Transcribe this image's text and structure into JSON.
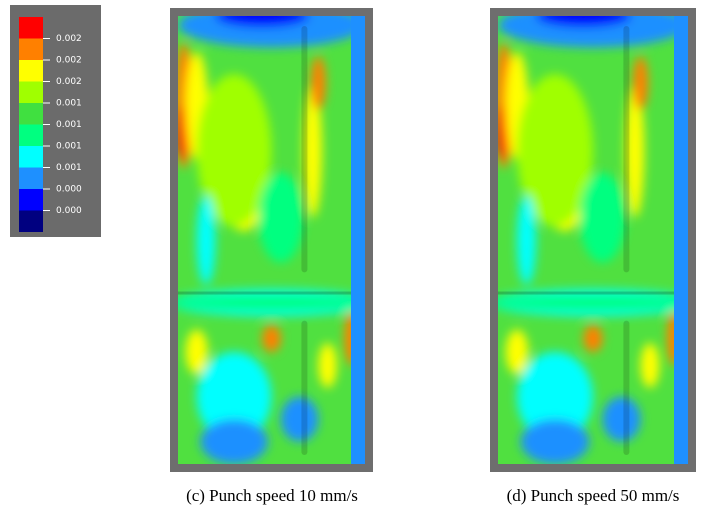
{
  "legend": {
    "labels": [
      "0.002",
      "0.002",
      "0.002",
      "0.001",
      "0.001",
      "0.001",
      "0.001",
      "0.000",
      "0.000"
    ]
  },
  "panels": [
    {
      "caption": "(c) Punch speed 10 mm/s"
    },
    {
      "caption": "(d) Punch speed 50 mm/s"
    }
  ]
}
